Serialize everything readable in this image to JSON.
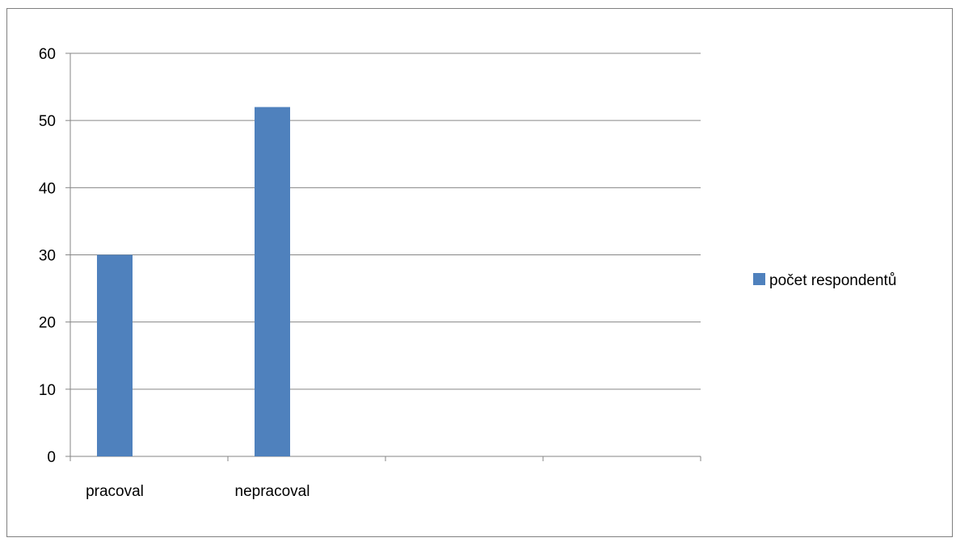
{
  "chart_data": {
    "type": "bar",
    "categories": [
      "pracoval",
      "nepracoval",
      "",
      ""
    ],
    "series": [
      {
        "name": "počet respondentů",
        "values": [
          30,
          52,
          null,
          null
        ],
        "color": "#4f81bd"
      }
    ],
    "ylim": [
      0,
      60
    ],
    "yticks": [
      0,
      10,
      20,
      30,
      40,
      50,
      60
    ],
    "grid": true,
    "legend_position": "right"
  }
}
